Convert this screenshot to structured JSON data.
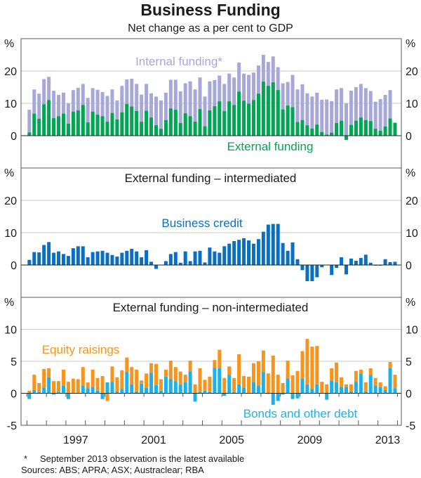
{
  "chart_data": [
    {
      "type": "bar",
      "title": "Business Funding",
      "subtitle": "Net change as a per cent to GDP",
      "ylabel": "%",
      "ylim": [
        -10,
        30
      ],
      "yticks": [
        "20",
        "10",
        "0"
      ],
      "yticks_values": [
        20,
        10,
        0
      ],
      "x_start": 1995.0,
      "frequency": "quarterly",
      "xlim": [
        1994.7,
        2014.2
      ],
      "series": [
        {
          "name": "Internal funding*",
          "color": "#a7a7d8",
          "kind": "total",
          "values": [
            8,
            14.3,
            13,
            17.5,
            18.2,
            13.9,
            12.6,
            13.3,
            10,
            14.1,
            14.8,
            16,
            11.7,
            14.7,
            14.2,
            13.5,
            12.3,
            14.3,
            10.9,
            15.4,
            17.4,
            17.6,
            16,
            12.7,
            16,
            13.1,
            12.1,
            10.9,
            13.3,
            17.3,
            17.3,
            13.7,
            16.2,
            16.8,
            14.3,
            18,
            12.1,
            16.8,
            17.2,
            18.6,
            16,
            19.2,
            18,
            22.6,
            19.2,
            18.8,
            19.5,
            21.7,
            25,
            22.8,
            24.5,
            21.2,
            16.2,
            16.6,
            18.8,
            14.3,
            15.9,
            13.1,
            12.1,
            13.3,
            11.1,
            11.2,
            10.7,
            14.3,
            14.7,
            10,
            13.9,
            15,
            16,
            14.7,
            13.8,
            10.5,
            11.3,
            12.6,
            14.1,
            null
          ]
        },
        {
          "name": "External funding",
          "color": "#00a651",
          "values": [
            1,
            6.8,
            5.2,
            9.7,
            11,
            5.4,
            6,
            6.8,
            3.7,
            7.4,
            7.8,
            9.5,
            4.1,
            7.4,
            6.5,
            6,
            4.3,
            7,
            5,
            7.2,
            9.8,
            9,
            7.6,
            4.3,
            7.7,
            5.6,
            3.2,
            2.1,
            4.8,
            8.4,
            8,
            3.9,
            6.9,
            6,
            4.3,
            8.2,
            2.9,
            7.8,
            9.1,
            10.6,
            7.6,
            10.6,
            9.5,
            13.6,
            10.8,
            9.9,
            11,
            13,
            16.7,
            15.4,
            16.5,
            14.1,
            8.1,
            9.3,
            8.8,
            4.2,
            4.8,
            3.2,
            2.2,
            3.4,
            1.1,
            0.3,
            0.9,
            3.9,
            4.6,
            -1.3,
            3.3,
            4.6,
            5.6,
            4.8,
            4.5,
            2.1,
            1.5,
            2.8,
            5.3,
            4
          ]
        }
      ]
    },
    {
      "type": "bar",
      "title": "External funding – intermediated",
      "ylabel": "%",
      "ylim": [
        -10,
        30
      ],
      "yticks": [
        "20",
        "10",
        "0"
      ],
      "yticks_values": [
        20,
        10,
        0
      ],
      "series": [
        {
          "name": "Business credit",
          "color": "#0b6fc1",
          "values": [
            1.6,
            4,
            3.9,
            6.2,
            7.1,
            3.8,
            4.2,
            3.4,
            2.8,
            5.2,
            5.8,
            5.8,
            2.4,
            4,
            4.2,
            4.4,
            3.8,
            3.1,
            2.6,
            3.8,
            4.4,
            5,
            4.2,
            2.4,
            4.6,
            1,
            -1.2,
            0,
            1.2,
            3.4,
            4,
            0.7,
            4.2,
            1.2,
            4.2,
            4.4,
            0.8,
            5.4,
            4.2,
            3.8,
            5.8,
            6.6,
            7.4,
            7.8,
            8.3,
            7.6,
            6.6,
            8,
            10.3,
            12.5,
            12.7,
            12.7,
            6.8,
            4.4,
            7,
            1.8,
            -1.6,
            -5,
            -5,
            -3.8,
            -0.7,
            0,
            -3.1,
            -0.9,
            2.4,
            -2.9,
            2,
            1.3,
            2.2,
            3.2,
            0.7,
            -0.2,
            -0.2,
            1.8,
            0.9,
            1
          ]
        }
      ]
    },
    {
      "type": "bar",
      "title": "External funding – non-intermediated",
      "ylabel": "%",
      "ylim": [
        -5,
        15
      ],
      "yticks": [
        "10",
        "5",
        "0",
        "-5"
      ],
      "yticks_values": [
        10,
        5,
        0,
        -5
      ],
      "xticks": [
        "1997",
        "2001",
        "2005",
        "2009",
        "2013"
      ],
      "xticks_values": [
        1997,
        2001,
        2005,
        2009,
        2013
      ],
      "series": [
        {
          "name": "Equity raisings",
          "color": "#f7941d",
          "values": [
            0.4,
            2.4,
            1.4,
            2.9,
            1.4,
            1.9,
            1.7,
            2.5,
            1.8,
            2.3,
            2.2,
            2.9,
            0.9,
            2.7,
            2,
            2.7,
            -1.2,
            2.4,
            2.2,
            2.9,
            2.3,
            2.7,
            3.4,
            0.5,
            2.2,
            1.5,
            3.3,
            1.8,
            1.1,
            2.9,
            2.2,
            2,
            1.2,
            1.7,
            1.4,
            3.7,
            1.7,
            2.4,
            1.2,
            2.9,
            2.4,
            1.3,
            2.2,
            4.7,
            1.8,
            2.6,
            3,
            3.8,
            3.4,
            3.1,
            5.9,
            2.9,
            1.6,
            2.8,
            2.8,
            3.5,
            4.3,
            7.1,
            6.6,
            6,
            1.8,
            1.4,
            1.9,
            3.1,
            1.5,
            0.4,
            1.1,
            1.7,
            0.6,
            1.4,
            1,
            1.2,
            0.7,
            0.6,
            1,
            2.1
          ]
        },
        {
          "name": "Bonds and other debt",
          "color": "#1cb1ec",
          "values": [
            -0.9,
            0.5,
            0.2,
            0.9,
            2.5,
            -0.2,
            0.2,
            1.2,
            -0.9,
            0,
            0,
            1.2,
            0.8,
            1,
            0.4,
            -0.9,
            1.7,
            1.8,
            0.3,
            0.7,
            3.3,
            1.4,
            0.3,
            1.5,
            0.9,
            3.2,
            1.3,
            0.4,
            2.6,
            2.2,
            1.9,
            1.4,
            1.7,
            3.4,
            -1.3,
            0.2,
            0.4,
            0.2,
            4,
            3.9,
            -0.4,
            2.9,
            0.2,
            1.4,
            0.9,
            0,
            1.7,
            1.2,
            3.3,
            -0.1,
            -1.8,
            -1.2,
            -0.2,
            2.3,
            -0.9,
            -0.8,
            2.3,
            1.4,
            0.7,
            1.4,
            0,
            -1,
            2,
            1.7,
            1,
            1,
            0.3,
            1.8,
            3.1,
            0.3,
            2.9,
            1.2,
            1,
            0.5,
            3.9,
            0.8
          ]
        }
      ]
    }
  ],
  "footnote": {
    "marker": "*",
    "text": "September 2013 observation is the latest available"
  },
  "sources": "Sources: ABS; APRA; ASX; Austraclear; RBA"
}
